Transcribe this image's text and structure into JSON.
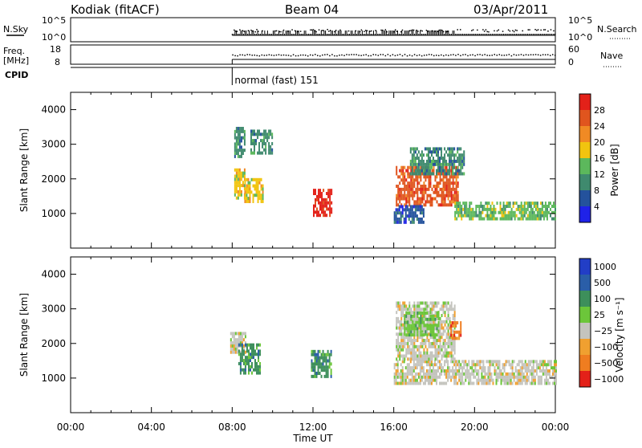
{
  "header": {
    "radar": "Kodiak (fitACF)",
    "beam": "Beam 04",
    "date": "03/Apr/2011"
  },
  "status_panels": {
    "nsky_label": "N.Sky",
    "nsky_ticks": [
      "10^5",
      "10^0"
    ],
    "nsearch_label": "N.Search",
    "nsearch_ticks": [
      "10^5",
      "10^0"
    ],
    "freq_label": "Freq.",
    "freq_unit": "[MHz]",
    "freq_ticks": [
      "18",
      "8"
    ],
    "nave_label": "Nave",
    "nave_ticks": [
      "60",
      "0"
    ],
    "cpid_label": "CPID",
    "cpid_value": "normal (fast) 151",
    "cpid_start": "08:00"
  },
  "colors": {
    "power": [
      "#1f22e8",
      "#24529c",
      "#3f8a6e",
      "#5cb85c",
      "#f1c40f",
      "#f08a24",
      "#e0551e",
      "#e32119"
    ],
    "velocity": [
      "#223ec6",
      "#2a5ea8",
      "#3d8f5b",
      "#6cc63a",
      "#c4c4be",
      "#f0a030",
      "#ef7d20",
      "#e32119"
    ],
    "ground_scatter": "#c4c4be"
  },
  "chart_data": [
    {
      "type": "heatmap",
      "name": "Power",
      "ylabel": "Slant Range [km]",
      "yticks": [
        1000,
        2000,
        3000,
        4000
      ],
      "ylim": [
        0,
        4500
      ],
      "xlim": [
        "00:00",
        "24:00"
      ],
      "colorbar": {
        "label": "Power [dB]",
        "ticks": [
          "4",
          "8",
          "12",
          "16",
          "20",
          "24",
          "28"
        ],
        "range": [
          0,
          30
        ]
      },
      "echo_regions": [
        {
          "t_start": 8.1,
          "t_end": 8.6,
          "r_min": 1400,
          "r_max": 2300,
          "level": 4
        },
        {
          "t_start": 8.6,
          "t_end": 9.5,
          "r_min": 1300,
          "r_max": 2000,
          "level": 4
        },
        {
          "t_start": 8.9,
          "t_end": 10.0,
          "r_min": 2700,
          "r_max": 3400,
          "level": 2
        },
        {
          "t_start": 8.1,
          "t_end": 8.6,
          "r_min": 2600,
          "r_max": 3500,
          "level": 2
        },
        {
          "t_start": 12.0,
          "t_end": 12.9,
          "r_min": 900,
          "r_max": 1700,
          "level": 7
        },
        {
          "t_start": 16.1,
          "t_end": 19.2,
          "r_min": 1200,
          "r_max": 2300,
          "level": 6
        },
        {
          "t_start": 19.0,
          "t_end": 24.0,
          "r_min": 800,
          "r_max": 1300,
          "level": 3
        },
        {
          "t_start": 16.8,
          "t_end": 19.5,
          "r_min": 2100,
          "r_max": 2900,
          "level": 2
        },
        {
          "t_start": 16.0,
          "t_end": 17.5,
          "r_min": 700,
          "r_max": 1200,
          "level": 1
        }
      ]
    },
    {
      "type": "heatmap",
      "name": "Velocity",
      "ylabel": "Slant Range [km]",
      "xlabel": "Time UT",
      "yticks": [
        1000,
        2000,
        3000,
        4000
      ],
      "xticks": [
        "00:00",
        "04:00",
        "08:00",
        "12:00",
        "16:00",
        "20:00",
        "00:00"
      ],
      "ylim": [
        0,
        4500
      ],
      "colorbar": {
        "label": "Velocity [m s⁻¹]",
        "ticks": [
          "1000",
          "500",
          "100",
          "25",
          "−25",
          "−100",
          "−500",
          "−1000"
        ]
      },
      "echo_regions": [
        {
          "t_start": 7.9,
          "t_end": 8.7,
          "r_min": 1700,
          "r_max": 2300,
          "level": 4
        },
        {
          "t_start": 8.3,
          "t_end": 9.4,
          "r_min": 1100,
          "r_max": 2000,
          "level": 2
        },
        {
          "t_start": 11.9,
          "t_end": 12.9,
          "r_min": 1000,
          "r_max": 1800,
          "level": 2
        },
        {
          "t_start": 16.0,
          "t_end": 24.0,
          "r_min": 800,
          "r_max": 1500,
          "level": 4
        },
        {
          "t_start": 16.1,
          "t_end": 19.0,
          "r_min": 1500,
          "r_max": 3200,
          "level": 4
        },
        {
          "t_start": 16.5,
          "t_end": 18.2,
          "r_min": 2200,
          "r_max": 2900,
          "level": 3
        },
        {
          "t_start": 18.8,
          "t_end": 19.3,
          "r_min": 2100,
          "r_max": 2600,
          "level": 6
        }
      ]
    }
  ]
}
